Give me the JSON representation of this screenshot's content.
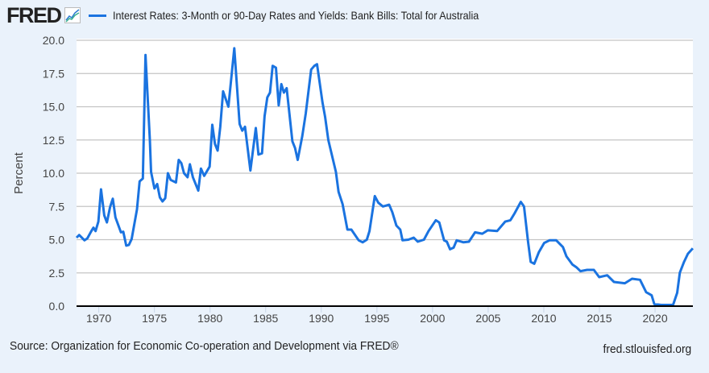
{
  "header": {
    "logo_text": "FRED",
    "logo_icon": "line-chart-icon",
    "title": "Interest Rates: 3-Month or 90-Day Rates and Yields: Bank Bills: Total for Australia"
  },
  "footer": {
    "source": "Source: Organization for Economic Co-operation and Development via FRED®",
    "site": "fred.stlouisfed.org"
  },
  "colors": {
    "series": "#1a73e0",
    "background": "#eaf2fb",
    "plot": "#ffffff",
    "grid": "#c4c4c4"
  },
  "chart_data": {
    "type": "line",
    "title": "Interest Rates: 3-Month or 90-Day Rates and Yields: Bank Bills: Total for Australia",
    "xlabel": "",
    "ylabel": "Percent",
    "xlim": [
      1968,
      2023.4
    ],
    "ylim": [
      0,
      20
    ],
    "grid": true,
    "legend": "top",
    "x_ticks": [
      "1970",
      "1975",
      "1980",
      "1985",
      "1990",
      "1995",
      "2000",
      "2005",
      "2010",
      "2015",
      "2020"
    ],
    "y_ticks": [
      "0.0",
      "2.5",
      "5.0",
      "7.5",
      "10.0",
      "12.5",
      "15.0",
      "17.5",
      "20.0"
    ],
    "series": [
      {
        "name": "Interest Rates: 3-Month or 90-Day Rates and Yields: Bank Bills: Total for Australia",
        "points": [
          [
            1968.0,
            5.15
          ],
          [
            1968.24,
            5.35
          ],
          [
            1968.72,
            4.95
          ],
          [
            1968.97,
            5.1
          ],
          [
            1969.33,
            5.65
          ],
          [
            1969.52,
            5.9
          ],
          [
            1969.71,
            5.65
          ],
          [
            1969.96,
            6.36
          ],
          [
            1970.2,
            8.79
          ],
          [
            1970.49,
            6.83
          ],
          [
            1970.73,
            6.3
          ],
          [
            1971.02,
            7.47
          ],
          [
            1971.26,
            8.08
          ],
          [
            1971.5,
            6.67
          ],
          [
            1971.99,
            5.55
          ],
          [
            1972.2,
            5.6
          ],
          [
            1972.47,
            4.55
          ],
          [
            1972.7,
            4.6
          ],
          [
            1972.95,
            5.05
          ],
          [
            1973.43,
            7.27
          ],
          [
            1973.67,
            9.39
          ],
          [
            1973.96,
            9.6
          ],
          [
            1974.2,
            18.9
          ],
          [
            1974.59,
            12.5
          ],
          [
            1974.7,
            10.1
          ],
          [
            1975.0,
            8.85
          ],
          [
            1975.25,
            9.19
          ],
          [
            1975.49,
            8.18
          ],
          [
            1975.73,
            7.88
          ],
          [
            1975.97,
            8.12
          ],
          [
            1976.21,
            10.0
          ],
          [
            1976.46,
            9.5
          ],
          [
            1976.94,
            9.3
          ],
          [
            1977.18,
            11.0
          ],
          [
            1977.42,
            10.75
          ],
          [
            1977.66,
            10.0
          ],
          [
            1977.98,
            9.7
          ],
          [
            1978.19,
            10.67
          ],
          [
            1978.46,
            9.7
          ],
          [
            1978.94,
            8.69
          ],
          [
            1979.18,
            10.35
          ],
          [
            1979.47,
            9.8
          ],
          [
            1979.96,
            10.5
          ],
          [
            1980.2,
            13.64
          ],
          [
            1980.44,
            12.2
          ],
          [
            1980.68,
            11.7
          ],
          [
            1980.92,
            13.5
          ],
          [
            1981.17,
            16.16
          ],
          [
            1981.65,
            15.0
          ],
          [
            1982.18,
            19.4
          ],
          [
            1982.66,
            13.7
          ],
          [
            1982.9,
            13.2
          ],
          [
            1983.14,
            13.5
          ],
          [
            1983.63,
            10.2
          ],
          [
            1984.11,
            13.4
          ],
          [
            1984.35,
            11.4
          ],
          [
            1984.67,
            11.5
          ],
          [
            1984.9,
            14.3
          ],
          [
            1985.15,
            15.7
          ],
          [
            1985.39,
            16.06
          ],
          [
            1985.63,
            18.08
          ],
          [
            1985.92,
            17.94
          ],
          [
            1986.17,
            15.1
          ],
          [
            1986.41,
            16.7
          ],
          [
            1986.64,
            16.06
          ],
          [
            1986.89,
            16.4
          ],
          [
            1987.4,
            12.4
          ],
          [
            1987.64,
            11.9
          ],
          [
            1987.88,
            11.0
          ],
          [
            1988.29,
            12.8
          ],
          [
            1988.6,
            14.5
          ],
          [
            1989.09,
            17.8
          ],
          [
            1989.38,
            18.08
          ],
          [
            1989.62,
            18.2
          ],
          [
            1990.1,
            15.35
          ],
          [
            1990.34,
            14.24
          ],
          [
            1990.63,
            12.5
          ],
          [
            1991.31,
            10.1
          ],
          [
            1991.55,
            8.6
          ],
          [
            1991.91,
            7.68
          ],
          [
            1992.35,
            5.76
          ],
          [
            1992.7,
            5.76
          ],
          [
            1993.36,
            4.95
          ],
          [
            1993.72,
            4.8
          ],
          [
            1994.09,
            5.0
          ],
          [
            1994.33,
            5.65
          ],
          [
            1994.81,
            8.28
          ],
          [
            1995.12,
            7.78
          ],
          [
            1995.54,
            7.5
          ],
          [
            1996.1,
            7.63
          ],
          [
            1996.38,
            7.07
          ],
          [
            1996.75,
            6.06
          ],
          [
            1997.1,
            5.76
          ],
          [
            1997.3,
            4.95
          ],
          [
            1997.83,
            5.0
          ],
          [
            1998.31,
            5.15
          ],
          [
            1998.67,
            4.85
          ],
          [
            1999.23,
            5.0
          ],
          [
            1999.64,
            5.65
          ],
          [
            2000.29,
            6.46
          ],
          [
            2000.6,
            6.3
          ],
          [
            2001.04,
            4.95
          ],
          [
            2001.28,
            4.85
          ],
          [
            2001.57,
            4.28
          ],
          [
            2001.89,
            4.4
          ],
          [
            2002.17,
            4.95
          ],
          [
            2002.78,
            4.8
          ],
          [
            2003.27,
            4.85
          ],
          [
            2003.82,
            5.55
          ],
          [
            2004.47,
            5.45
          ],
          [
            2004.96,
            5.7
          ],
          [
            2005.8,
            5.65
          ],
          [
            2006.53,
            6.36
          ],
          [
            2007.0,
            6.46
          ],
          [
            2007.37,
            6.97
          ],
          [
            2007.93,
            7.84
          ],
          [
            2008.22,
            7.5
          ],
          [
            2008.58,
            4.85
          ],
          [
            2008.82,
            3.33
          ],
          [
            2009.14,
            3.19
          ],
          [
            2009.55,
            4.04
          ],
          [
            2010.03,
            4.75
          ],
          [
            2010.51,
            4.95
          ],
          [
            2011.12,
            4.95
          ],
          [
            2011.72,
            4.44
          ],
          [
            2012.04,
            3.74
          ],
          [
            2012.57,
            3.13
          ],
          [
            2012.93,
            2.93
          ],
          [
            2013.29,
            2.63
          ],
          [
            2013.89,
            2.73
          ],
          [
            2014.5,
            2.73
          ],
          [
            2014.98,
            2.18
          ],
          [
            2015.7,
            2.32
          ],
          [
            2016.31,
            1.82
          ],
          [
            2017.28,
            1.72
          ],
          [
            2017.93,
            2.06
          ],
          [
            2018.65,
            1.98
          ],
          [
            2019.2,
            1.05
          ],
          [
            2019.69,
            0.81
          ],
          [
            2019.93,
            0.16
          ],
          [
            2020.54,
            0.09
          ],
          [
            2021.62,
            0.09
          ],
          [
            2021.99,
            1.0
          ],
          [
            2022.23,
            2.52
          ],
          [
            2022.6,
            3.33
          ],
          [
            2022.95,
            3.94
          ],
          [
            2023.39,
            4.35
          ]
        ]
      }
    ]
  }
}
